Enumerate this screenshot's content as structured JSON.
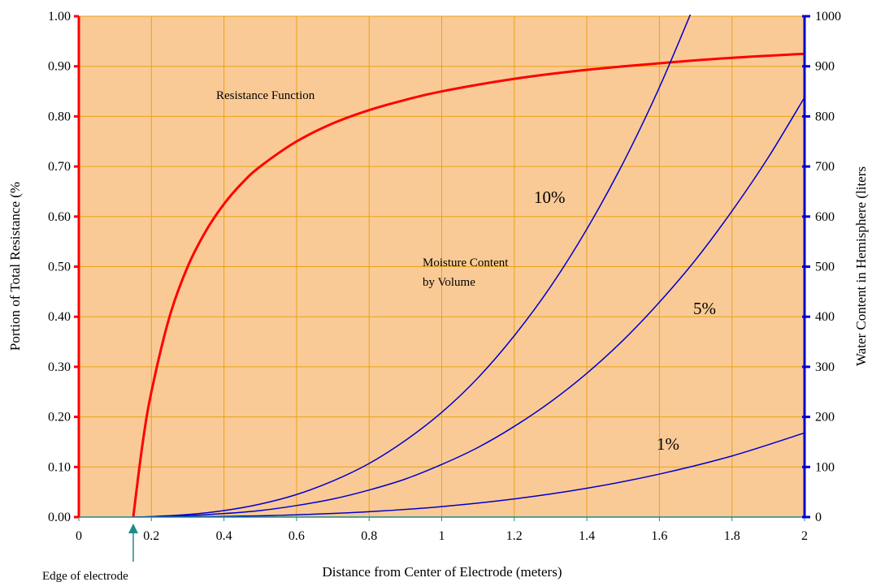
{
  "chart_data": {
    "type": "line",
    "xlabel": "Distance from Center of Electrode (meters)",
    "ylabel_left": "Portion of Total Resistance (%",
    "ylabel_right": "Water Content in Hemisphere (liters",
    "x_range": [
      0,
      2
    ],
    "y_left_range": [
      0,
      1
    ],
    "y_right_range": [
      0,
      1000
    ],
    "x_ticks": [
      "0",
      "0.2",
      "0.4",
      "0.6",
      "0.8",
      "1",
      "1.2",
      "1.4",
      "1.6",
      "1.8",
      "2"
    ],
    "y_left_ticks": [
      "0.00",
      "0.10",
      "0.20",
      "0.30",
      "0.40",
      "0.50",
      "0.60",
      "0.70",
      "0.80",
      "0.90",
      "1.00"
    ],
    "y_right_ticks": [
      "0",
      "100",
      "200",
      "300",
      "400",
      "500",
      "600",
      "700",
      "800",
      "900",
      "1000"
    ],
    "grid": true,
    "background_color": "#FACA96",
    "grid_color": "#E8A317",
    "left_axis_color": "#FF0000",
    "right_axis_color": "#0000CC",
    "series": [
      {
        "axis": "left",
        "color": "#FF0000",
        "x": [
          0.15,
          0.175,
          0.2,
          0.25,
          0.3,
          0.35,
          0.4,
          0.45,
          0.5,
          0.6,
          0.7,
          0.8,
          0.9,
          1.0,
          1.2,
          1.4,
          1.6,
          1.8,
          2.0
        ],
        "values": [
          0.0,
          0.143,
          0.25,
          0.4,
          0.5,
          0.571,
          0.625,
          0.667,
          0.7,
          0.75,
          0.786,
          0.8125,
          0.833,
          0.85,
          0.875,
          0.893,
          0.906,
          0.917,
          0.925
        ]
      },
      {
        "axis": "right",
        "color": "#0000CC",
        "x": [
          0.15,
          0.2,
          0.3,
          0.4,
          0.5,
          0.6,
          0.7,
          0.8,
          0.9,
          1.0,
          1.1,
          1.2,
          1.3,
          1.4,
          1.5,
          1.6,
          1.7
        ],
        "values": [
          0,
          1,
          5,
          13,
          26,
          45,
          72,
          107,
          153,
          209,
          278,
          362,
          460,
          575,
          707,
          858,
          1029
        ]
      },
      {
        "axis": "right",
        "color": "#0000CC",
        "x": [
          0.15,
          0.2,
          0.3,
          0.4,
          0.5,
          0.6,
          0.7,
          0.8,
          0.9,
          1.0,
          1.1,
          1.2,
          1.3,
          1.4,
          1.5,
          1.6,
          1.7,
          1.8,
          1.9,
          2.0
        ],
        "values": [
          0,
          0.5,
          3,
          7,
          13,
          23,
          36,
          54,
          76,
          105,
          139,
          181,
          230,
          287,
          353,
          429,
          514,
          611,
          718,
          838
        ]
      },
      {
        "axis": "right",
        "color": "#0000CC",
        "x": [
          0.15,
          0.2,
          0.4,
          0.6,
          0.8,
          1.0,
          1.2,
          1.4,
          1.6,
          1.8,
          2.0
        ],
        "values": [
          0,
          0.1,
          1.3,
          4.5,
          10.7,
          20.9,
          36.2,
          57.5,
          85.8,
          122,
          168
        ]
      }
    ],
    "annotations": {
      "resistance_function": "Resistance Function",
      "moisture_line1": "Moisture Content",
      "moisture_line2": "by Volume",
      "label_10": "10%",
      "label_5": "5%",
      "label_1": "1%",
      "edge_label": "Edge of electrode",
      "edge_x": 0.15
    }
  }
}
